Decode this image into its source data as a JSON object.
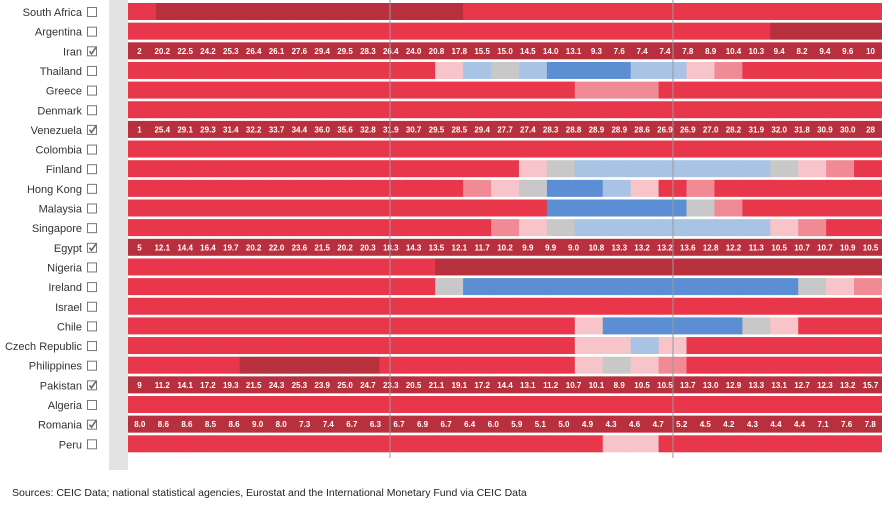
{
  "palette": {
    "deep_red": "#b8303e",
    "red": "#e8374a",
    "light_red": "#f08a95",
    "pink": "#f7c4c9",
    "gray": "#c8c8c8",
    "light_blue": "#a9c3e4",
    "blue": "#5b8ed2",
    "grid_line": "#9a9a9a",
    "checkbox_border": "#777777",
    "check_color": "#666666"
  },
  "source_text": "Sources: CEIC Data; national statistical agencies, Eurostat and the International Monetary Fund via CEIC Data",
  "chart_data": {
    "type": "heatmap",
    "title": "",
    "xlabel": "",
    "ylabel": "",
    "column_count": 27,
    "rows": [
      {
        "country": "South Africa",
        "checked": false,
        "shown_values": [],
        "colors": [
          "red",
          "deep_red",
          "deep_red",
          "deep_red",
          "deep_red",
          "deep_red",
          "deep_red",
          "deep_red",
          "deep_red",
          "deep_red",
          "deep_red",
          "deep_red",
          "red",
          "red",
          "red",
          "red",
          "red",
          "red",
          "red",
          "red",
          "red",
          "red",
          "red",
          "red",
          "red",
          "red",
          "red"
        ]
      },
      {
        "country": "Argentina",
        "checked": false,
        "shown_values": [],
        "colors": [
          "red",
          "red",
          "red",
          "red",
          "red",
          "red",
          "red",
          "red",
          "red",
          "red",
          "red",
          "red",
          "red",
          "red",
          "red",
          "red",
          "red",
          "red",
          "red",
          "red",
          "red",
          "red",
          "red",
          "deep_red",
          "deep_red",
          "deep_red",
          "deep_red"
        ]
      },
      {
        "country": "Iran",
        "checked": true,
        "shown_values": [
          "2",
          "20.2",
          "22.5",
          "24.2",
          "25.3",
          "26.4",
          "26.1",
          "27.6",
          "29.4",
          "29.5",
          "28.3",
          "26.4",
          "24.0",
          "20.8",
          "17.8",
          "15.5",
          "15.0",
          "14.5",
          "14.0",
          "13.1",
          "9.3",
          "7.6",
          "7.4",
          "7.4",
          "7.8",
          "8.9",
          "10.4",
          "10.3",
          "9.4",
          "8.2",
          "9.4",
          "9.6",
          "10"
        ],
        "colors": []
      },
      {
        "country": "Thailand",
        "checked": false,
        "shown_values": [],
        "colors": [
          "red",
          "red",
          "red",
          "red",
          "red",
          "red",
          "red",
          "red",
          "red",
          "red",
          "red",
          "pink",
          "light_blue",
          "gray",
          "light_blue",
          "blue",
          "blue",
          "blue",
          "light_blue",
          "light_blue",
          "pink",
          "light_red",
          "red",
          "red",
          "red",
          "red",
          "red"
        ]
      },
      {
        "country": "Greece",
        "checked": false,
        "shown_values": [],
        "colors": [
          "red",
          "red",
          "red",
          "red",
          "red",
          "red",
          "red",
          "red",
          "red",
          "red",
          "red",
          "red",
          "red",
          "red",
          "red",
          "red",
          "light_red",
          "light_red",
          "light_red",
          "red",
          "red",
          "red",
          "red",
          "red",
          "red",
          "red",
          "red"
        ]
      },
      {
        "country": "Denmark",
        "checked": false,
        "shown_values": [],
        "colors": [
          "red",
          "red",
          "red",
          "red",
          "red",
          "red",
          "red",
          "red",
          "red",
          "red",
          "red",
          "red",
          "red",
          "red",
          "red",
          "red",
          "red",
          "red",
          "red",
          "red",
          "red",
          "red",
          "red",
          "red",
          "red",
          "red",
          "red"
        ]
      },
      {
        "country": "Venezuela",
        "checked": true,
        "shown_values": [
          "1",
          "25.4",
          "29.1",
          "29.3",
          "31.4",
          "32.2",
          "33.7",
          "34.4",
          "36.0",
          "35.6",
          "32.8",
          "31.9",
          "30.7",
          "29.5",
          "28.5",
          "29.4",
          "27.7",
          "27.4",
          "28.3",
          "28.8",
          "28.9",
          "28.9",
          "28.6",
          "26.9",
          "26.9",
          "27.0",
          "28.2",
          "31.9",
          "32.0",
          "31.8",
          "30.9",
          "30.0",
          "28"
        ],
        "colors": []
      },
      {
        "country": "Colombia",
        "checked": false,
        "shown_values": [],
        "colors": [
          "red",
          "red",
          "red",
          "red",
          "red",
          "red",
          "red",
          "red",
          "red",
          "red",
          "red",
          "red",
          "red",
          "red",
          "red",
          "red",
          "red",
          "red",
          "red",
          "red",
          "red",
          "red",
          "red",
          "red",
          "red",
          "red",
          "red"
        ]
      },
      {
        "country": "Finland",
        "checked": false,
        "shown_values": [],
        "colors": [
          "red",
          "red",
          "red",
          "red",
          "red",
          "red",
          "red",
          "red",
          "red",
          "red",
          "red",
          "red",
          "red",
          "red",
          "pink",
          "gray",
          "light_blue",
          "light_blue",
          "light_blue",
          "light_blue",
          "light_blue",
          "light_blue",
          "light_blue",
          "gray",
          "pink",
          "light_red",
          "red"
        ]
      },
      {
        "country": "Hong Kong",
        "checked": false,
        "shown_values": [],
        "colors": [
          "red",
          "red",
          "red",
          "red",
          "red",
          "red",
          "red",
          "red",
          "red",
          "red",
          "red",
          "red",
          "light_red",
          "pink",
          "gray",
          "blue",
          "blue",
          "light_blue",
          "pink",
          "red",
          "light_red",
          "red",
          "red",
          "red",
          "red",
          "red",
          "red"
        ]
      },
      {
        "country": "Malaysia",
        "checked": false,
        "shown_values": [],
        "colors": [
          "red",
          "red",
          "red",
          "red",
          "red",
          "red",
          "red",
          "red",
          "red",
          "red",
          "red",
          "red",
          "red",
          "red",
          "red",
          "blue",
          "blue",
          "blue",
          "blue",
          "blue",
          "gray",
          "light_red",
          "red",
          "red",
          "red",
          "red",
          "red"
        ]
      },
      {
        "country": "Singapore",
        "checked": false,
        "shown_values": [],
        "colors": [
          "red",
          "red",
          "red",
          "red",
          "red",
          "red",
          "red",
          "red",
          "red",
          "red",
          "red",
          "red",
          "red",
          "light_red",
          "pink",
          "gray",
          "light_blue",
          "light_blue",
          "light_blue",
          "light_blue",
          "light_blue",
          "light_blue",
          "light_blue",
          "pink",
          "light_red",
          "red",
          "red"
        ]
      },
      {
        "country": "Egypt",
        "checked": true,
        "shown_values": [
          "5",
          "12.1",
          "14.4",
          "16.4",
          "19.7",
          "20.2",
          "22.0",
          "23.6",
          "21.5",
          "20.2",
          "20.3",
          "18.3",
          "14.3",
          "13.5",
          "12.1",
          "11.7",
          "10.2",
          "9.9",
          "9.9",
          "9.0",
          "10.8",
          "13.3",
          "13.2",
          "13.2",
          "13.6",
          "12.8",
          "12.2",
          "11.3",
          "10.5",
          "10.7",
          "10.7",
          "10.9",
          "10.5"
        ],
        "colors": []
      },
      {
        "country": "Nigeria",
        "checked": false,
        "shown_values": [],
        "colors": [
          "red",
          "red",
          "red",
          "red",
          "red",
          "red",
          "red",
          "red",
          "red",
          "red",
          "red",
          "deep_red",
          "deep_red",
          "deep_red",
          "deep_red",
          "deep_red",
          "deep_red",
          "deep_red",
          "deep_red",
          "deep_red",
          "deep_red",
          "deep_red",
          "deep_red",
          "deep_red",
          "deep_red",
          "deep_red",
          "deep_red"
        ]
      },
      {
        "country": "Ireland",
        "checked": false,
        "shown_values": [],
        "colors": [
          "red",
          "red",
          "red",
          "red",
          "red",
          "red",
          "red",
          "red",
          "red",
          "red",
          "red",
          "gray",
          "blue",
          "blue",
          "blue",
          "blue",
          "blue",
          "blue",
          "blue",
          "blue",
          "blue",
          "blue",
          "blue",
          "blue",
          "gray",
          "pink",
          "light_red"
        ]
      },
      {
        "country": "Israel",
        "checked": false,
        "shown_values": [],
        "colors": [
          "red",
          "red",
          "red",
          "red",
          "red",
          "red",
          "red",
          "red",
          "red",
          "red",
          "red",
          "red",
          "red",
          "red",
          "red",
          "red",
          "red",
          "red",
          "red",
          "red",
          "red",
          "red",
          "red",
          "red",
          "red",
          "red",
          "red"
        ]
      },
      {
        "country": "Chile",
        "checked": false,
        "shown_values": [],
        "colors": [
          "red",
          "red",
          "red",
          "red",
          "red",
          "red",
          "red",
          "red",
          "red",
          "red",
          "red",
          "red",
          "red",
          "red",
          "red",
          "red",
          "pink",
          "blue",
          "blue",
          "blue",
          "blue",
          "blue",
          "gray",
          "pink",
          "red",
          "red",
          "red"
        ]
      },
      {
        "country": "Czech Republic",
        "checked": false,
        "shown_values": [],
        "colors": [
          "red",
          "red",
          "red",
          "red",
          "red",
          "red",
          "red",
          "red",
          "red",
          "red",
          "red",
          "red",
          "red",
          "red",
          "red",
          "red",
          "pink",
          "pink",
          "light_blue",
          "pink",
          "red",
          "red",
          "red",
          "red",
          "red",
          "red",
          "red"
        ]
      },
      {
        "country": "Philippines",
        "checked": false,
        "shown_values": [],
        "colors": [
          "red",
          "red",
          "red",
          "red",
          "deep_red",
          "deep_red",
          "deep_red",
          "deep_red",
          "deep_red",
          "red",
          "red",
          "red",
          "red",
          "red",
          "red",
          "red",
          "pink",
          "gray",
          "pink",
          "light_red",
          "red",
          "red",
          "red",
          "red",
          "red",
          "red",
          "red"
        ]
      },
      {
        "country": "Pakistan",
        "checked": true,
        "shown_values": [
          "9",
          "11.2",
          "14.1",
          "17.2",
          "19.3",
          "21.5",
          "24.3",
          "25.3",
          "23.9",
          "25.0",
          "24.7",
          "23.3",
          "20.5",
          "21.1",
          "19.1",
          "17.2",
          "14.4",
          "13.1",
          "11.2",
          "10.7",
          "10.1",
          "8.9",
          "10.5",
          "10.5",
          "13.7",
          "13.0",
          "12.9",
          "13.3",
          "13.1",
          "12.7",
          "12.3",
          "13.2",
          "15.7"
        ],
        "colors": []
      },
      {
        "country": "Algeria",
        "checked": false,
        "shown_values": [],
        "colors": [
          "red",
          "red",
          "red",
          "red",
          "red",
          "red",
          "red",
          "red",
          "red",
          "red",
          "red",
          "red",
          "red",
          "red",
          "red",
          "red",
          "red",
          "red",
          "red",
          "red",
          "red",
          "red",
          "red",
          "red",
          "red",
          "red",
          "red"
        ]
      },
      {
        "country": "Romania",
        "checked": true,
        "shown_values": [
          "8.0",
          "8.6",
          "8.6",
          "8.5",
          "8.6",
          "9.0",
          "8.0",
          "7.3",
          "7.4",
          "6.7",
          "6.3",
          "6.7",
          "6.9",
          "6.7",
          "6.4",
          "6.0",
          "5.9",
          "5.1",
          "5.0",
          "4.9",
          "4.3",
          "4.6",
          "4.7",
          "5.2",
          "4.5",
          "4.2",
          "4.3",
          "4.4",
          "4.4",
          "7.1",
          "7.6",
          "7.8"
        ],
        "colors": []
      },
      {
        "country": "Peru",
        "checked": false,
        "shown_values": [],
        "colors": [
          "red",
          "red",
          "red",
          "red",
          "red",
          "red",
          "red",
          "red",
          "red",
          "red",
          "red",
          "red",
          "red",
          "red",
          "red",
          "red",
          "red",
          "pink",
          "pink",
          "red",
          "red",
          "red",
          "red",
          "red",
          "red",
          "red",
          "red"
        ]
      }
    ]
  }
}
